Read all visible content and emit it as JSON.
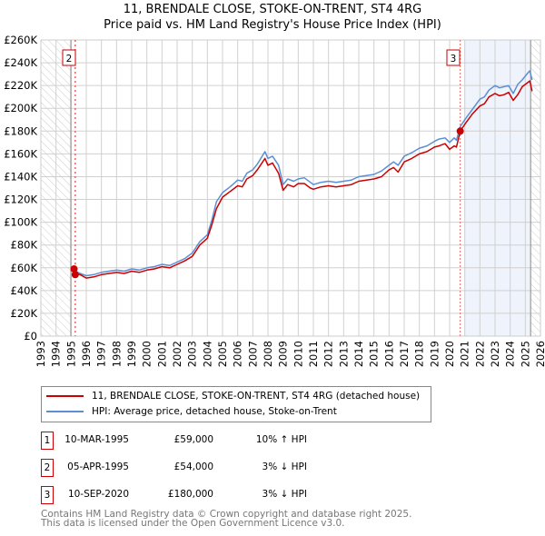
{
  "chart_data": {
    "type": "line",
    "title": "11, BRENDALE CLOSE, STOKE-ON-TRENT, ST4 4RG",
    "subtitle": "Price paid vs. HM Land Registry's House Price Index (HPI)",
    "xlim": [
      1993,
      2026
    ],
    "ylim": [
      0,
      260000
    ],
    "yticks": [
      "£0",
      "£20K",
      "£40K",
      "£60K",
      "£80K",
      "£100K",
      "£120K",
      "£140K",
      "£160K",
      "£180K",
      "£200K",
      "£220K",
      "£240K",
      "£260K"
    ],
    "xticks": [
      "1993",
      "1994",
      "1995",
      "1996",
      "1997",
      "1998",
      "1999",
      "2000",
      "2001",
      "2002",
      "2003",
      "2004",
      "2005",
      "2006",
      "2007",
      "2008",
      "2009",
      "2010",
      "2011",
      "2012",
      "2013",
      "2014",
      "2015",
      "2016",
      "2017",
      "2018",
      "2019",
      "2020",
      "2021",
      "2022",
      "2023",
      "2024",
      "2025",
      "2026"
    ],
    "grid": true,
    "series": [
      {
        "name": "11, BRENDALE CLOSE, STOKE-ON-TRENT, ST4 4RG (detached house)",
        "color": "#cc0000",
        "x": [
          1995.19,
          1995.3,
          1995.6,
          1996,
          1996.5,
          1997,
          1997.5,
          1998,
          1998.5,
          1999,
          1999.5,
          2000,
          2000.5,
          2001,
          2001.5,
          2002,
          2002.5,
          2003,
          2003.5,
          2004,
          2004.3,
          2004.6,
          2005,
          2005.5,
          2006,
          2006.3,
          2006.6,
          2007,
          2007.3,
          2007.8,
          2008,
          2008.3,
          2008.7,
          2009,
          2009.3,
          2009.7,
          2010,
          2010.4,
          2010.8,
          2011,
          2011.5,
          2012,
          2012.5,
          2013,
          2013.5,
          2014,
          2014.5,
          2015,
          2015.5,
          2016,
          2016.3,
          2016.6,
          2017,
          2017.5,
          2018,
          2018.5,
          2019,
          2019.3,
          2019.7,
          2020,
          2020.3,
          2020.45,
          2020.7,
          2021,
          2021.5,
          2022,
          2022.3,
          2022.6,
          2023,
          2023.3,
          2023.6,
          2023.9,
          2024.2,
          2024.5,
          2024.8,
          2025.1,
          2025.3,
          2025.45
        ],
        "y": [
          59000,
          55000,
          54000,
          51000,
          52000,
          54000,
          55000,
          56000,
          55000,
          57000,
          56000,
          58000,
          59000,
          61000,
          60000,
          63000,
          66000,
          70000,
          80000,
          86000,
          98000,
          112000,
          122000,
          127000,
          132000,
          131000,
          138000,
          141000,
          146000,
          156000,
          150000,
          152000,
          143000,
          128000,
          133000,
          131000,
          134000,
          134000,
          130000,
          129000,
          131000,
          132000,
          131000,
          132000,
          133000,
          136000,
          137000,
          138000,
          140000,
          146000,
          148000,
          144000,
          153000,
          156000,
          160000,
          162000,
          166000,
          167000,
          169000,
          164000,
          167000,
          166000,
          180000,
          186000,
          195000,
          202000,
          204000,
          210000,
          213000,
          211000,
          212000,
          214000,
          207000,
          212000,
          219000,
          222000,
          224000,
          215000
        ]
      },
      {
        "name": "HPI: Average price, detached house, Stoke-on-Trent",
        "color": "#5b8fd4",
        "x": [
          1995.1,
          1995.3,
          1995.6,
          1996,
          1996.5,
          1997,
          1997.5,
          1998,
          1998.5,
          1999,
          1999.5,
          2000,
          2000.5,
          2001,
          2001.5,
          2002,
          2002.5,
          2003,
          2003.5,
          2004,
          2004.3,
          2004.6,
          2005,
          2005.5,
          2006,
          2006.3,
          2006.6,
          2007,
          2007.3,
          2007.8,
          2008,
          2008.3,
          2008.7,
          2009,
          2009.3,
          2009.7,
          2010,
          2010.4,
          2010.8,
          2011,
          2011.5,
          2012,
          2012.5,
          2013,
          2013.5,
          2014,
          2014.5,
          2015,
          2015.5,
          2016,
          2016.3,
          2016.6,
          2017,
          2017.5,
          2018,
          2018.5,
          2019,
          2019.3,
          2019.7,
          2020,
          2020.3,
          2020.45,
          2020.7,
          2021,
          2021.5,
          2022,
          2022.3,
          2022.6,
          2023,
          2023.3,
          2023.6,
          2023.9,
          2024.2,
          2024.5,
          2024.8,
          2025.1,
          2025.3,
          2025.45
        ],
        "y": [
          53000,
          57000,
          55000,
          53000,
          54000,
          56000,
          57000,
          58000,
          57000,
          59000,
          58000,
          60000,
          61000,
          63000,
          62000,
          65000,
          68000,
          73000,
          83000,
          89000,
          102000,
          118000,
          126000,
          131000,
          137000,
          136000,
          143000,
          146000,
          151000,
          162000,
          156000,
          158000,
          150000,
          133000,
          138000,
          136000,
          138000,
          139000,
          135000,
          133000,
          135000,
          136000,
          135000,
          136000,
          137000,
          140000,
          141000,
          142000,
          145000,
          150000,
          153000,
          150000,
          158000,
          161000,
          165000,
          167000,
          171000,
          173000,
          174000,
          170000,
          174000,
          172000,
          184000,
          190000,
          199000,
          208000,
          210000,
          216000,
          220000,
          218000,
          219000,
          220000,
          213000,
          221000,
          225000,
          230000,
          233000,
          225000
        ]
      }
    ],
    "annotations": [
      {
        "label": "1",
        "x": 1995.19,
        "y": 59000
      },
      {
        "label": "2",
        "x": 1995.27,
        "y": 54000
      },
      {
        "label": "3",
        "x": 2020.7,
        "y": 180000
      }
    ],
    "shaded_range": [
      2020.96,
      2025.35
    ],
    "hatched_ranges": [
      [
        1993,
        1994.98
      ],
      [
        2025.35,
        2026
      ]
    ]
  },
  "legend": [
    {
      "label": "11, BRENDALE CLOSE, STOKE-ON-TRENT, ST4 4RG (detached house)",
      "color": "#cc0000"
    },
    {
      "label": "HPI: Average price, detached house, Stoke-on-Trent",
      "color": "#5b8fd4"
    }
  ],
  "transactions": [
    {
      "num": "1",
      "date": "10-MAR-1995",
      "price": "£59,000",
      "hpi": "10% ↑ HPI"
    },
    {
      "num": "2",
      "date": "05-APR-1995",
      "price": "£54,000",
      "hpi": "3% ↓ HPI"
    },
    {
      "num": "3",
      "date": "10-SEP-2020",
      "price": "£180,000",
      "hpi": "3% ↓ HPI"
    }
  ],
  "footer": {
    "line1": "Contains HM Land Registry data © Crown copyright and database right 2025.",
    "line2": "This data is licensed under the Open Government Licence v3.0."
  }
}
